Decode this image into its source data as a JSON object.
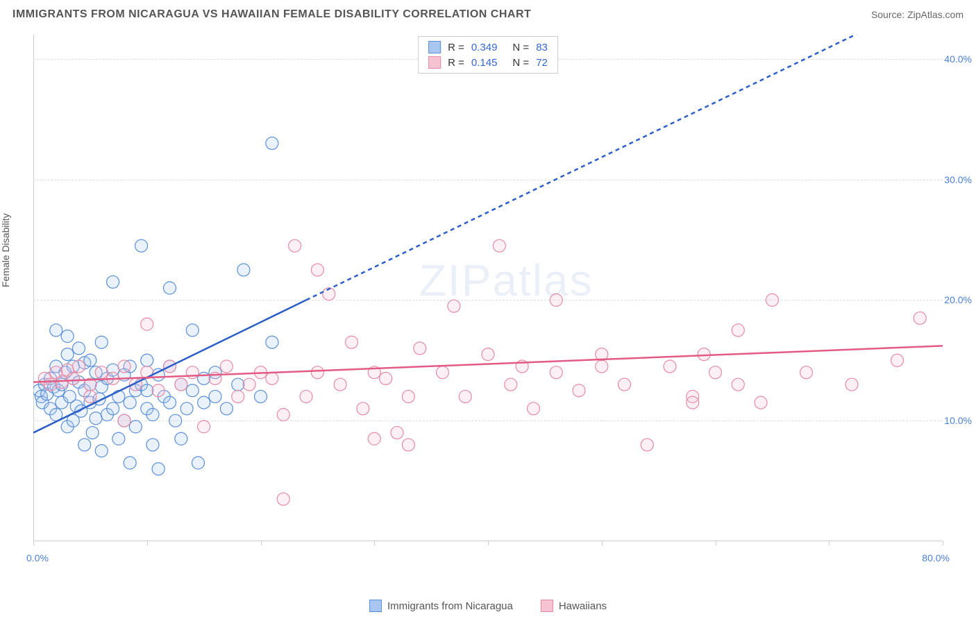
{
  "title": "IMMIGRANTS FROM NICARAGUA VS HAWAIIAN FEMALE DISABILITY CORRELATION CHART",
  "source": "Source: ZipAtlas.com",
  "ylabel": "Female Disability",
  "watermark_left": "ZIP",
  "watermark_right": "atlas",
  "chart": {
    "type": "scatter",
    "xlim": [
      0,
      80
    ],
    "ylim": [
      0,
      42
    ],
    "x_ticks": [
      0,
      10,
      20,
      30,
      40,
      50,
      60,
      70,
      80
    ],
    "x_tick_labels_shown": {
      "0": "0.0%",
      "80": "80.0%"
    },
    "y_grid": [
      10,
      20,
      30,
      40
    ],
    "y_tick_labels": {
      "10": "10.0%",
      "20": "20.0%",
      "30": "30.0%",
      "40": "40.0%"
    },
    "background_color": "#ffffff",
    "grid_color": "#dddddd",
    "axis_color": "#cccccc",
    "tick_label_color": "#4a7fd8",
    "marker_radius": 9,
    "marker_stroke_width": 1.2,
    "marker_fill_opacity": 0.25,
    "series": [
      {
        "name": "Immigrants from Nicaragua",
        "color_stroke": "#5a8fd8",
        "color_fill": "#a8c6ef",
        "points": [
          [
            0.5,
            12.5
          ],
          [
            0.7,
            12.0
          ],
          [
            0.8,
            11.5
          ],
          [
            1.0,
            13.0
          ],
          [
            1.2,
            12.2
          ],
          [
            1.5,
            13.5
          ],
          [
            1.5,
            11.0
          ],
          [
            1.8,
            12.8
          ],
          [
            2.0,
            14.5
          ],
          [
            2.0,
            17.5
          ],
          [
            2.0,
            10.5
          ],
          [
            2.2,
            12.5
          ],
          [
            2.5,
            13.0
          ],
          [
            2.5,
            11.5
          ],
          [
            2.8,
            14.0
          ],
          [
            3.0,
            15.5
          ],
          [
            3.0,
            17.0
          ],
          [
            3.0,
            9.5
          ],
          [
            3.2,
            12.0
          ],
          [
            3.5,
            13.5
          ],
          [
            3.5,
            14.5
          ],
          [
            3.5,
            10.0
          ],
          [
            3.8,
            11.2
          ],
          [
            4.0,
            13.2
          ],
          [
            4.0,
            16.0
          ],
          [
            4.2,
            10.8
          ],
          [
            4.5,
            14.8
          ],
          [
            4.5,
            12.5
          ],
          [
            4.5,
            8.0
          ],
          [
            5.0,
            13.0
          ],
          [
            5.0,
            11.5
          ],
          [
            5.0,
            15.0
          ],
          [
            5.2,
            9.0
          ],
          [
            5.5,
            10.2
          ],
          [
            5.5,
            14.0
          ],
          [
            5.8,
            11.8
          ],
          [
            6.0,
            12.8
          ],
          [
            6.0,
            16.5
          ],
          [
            6.0,
            7.5
          ],
          [
            6.5,
            13.5
          ],
          [
            6.5,
            10.5
          ],
          [
            7.0,
            14.2
          ],
          [
            7.0,
            11.0
          ],
          [
            7.0,
            21.5
          ],
          [
            7.5,
            12.0
          ],
          [
            7.5,
            8.5
          ],
          [
            8.0,
            13.8
          ],
          [
            8.0,
            10.0
          ],
          [
            8.5,
            14.5
          ],
          [
            8.5,
            11.5
          ],
          [
            8.5,
            6.5
          ],
          [
            9.0,
            12.5
          ],
          [
            9.0,
            9.5
          ],
          [
            9.5,
            13.0
          ],
          [
            9.5,
            24.5
          ],
          [
            10.0,
            15.0
          ],
          [
            10.0,
            11.0
          ],
          [
            10.0,
            12.5
          ],
          [
            10.5,
            10.5
          ],
          [
            10.5,
            8.0
          ],
          [
            11.0,
            13.8
          ],
          [
            11.0,
            6.0
          ],
          [
            11.5,
            12.0
          ],
          [
            12.0,
            14.5
          ],
          [
            12.0,
            11.5
          ],
          [
            12.0,
            21.0
          ],
          [
            12.5,
            10.0
          ],
          [
            13.0,
            13.0
          ],
          [
            13.0,
            8.5
          ],
          [
            13.5,
            11.0
          ],
          [
            14.0,
            12.5
          ],
          [
            14.0,
            17.5
          ],
          [
            14.5,
            6.5
          ],
          [
            15.0,
            13.5
          ],
          [
            15.0,
            11.5
          ],
          [
            16.0,
            12.0
          ],
          [
            16.0,
            14.0
          ],
          [
            17.0,
            11.0
          ],
          [
            18.0,
            13.0
          ],
          [
            18.5,
            22.5
          ],
          [
            20.0,
            12.0
          ],
          [
            21.0,
            33.0
          ],
          [
            21.0,
            16.5
          ]
        ],
        "regression": {
          "solid": [
            [
              0,
              9.0
            ],
            [
              24,
              20.0
            ]
          ],
          "dashed": [
            [
              24,
              20.0
            ],
            [
              80,
              45.5
            ]
          ],
          "color": "#2b5fc7",
          "width": 2.5,
          "dash": "6,5"
        }
      },
      {
        "name": "Hawaiians",
        "color_stroke": "#e68aa5",
        "color_fill": "#f6c3d2",
        "points": [
          [
            1.0,
            13.5
          ],
          [
            1.5,
            13.0
          ],
          [
            2.0,
            14.0
          ],
          [
            2.5,
            13.2
          ],
          [
            3.0,
            14.2
          ],
          [
            3.5,
            13.5
          ],
          [
            4.0,
            14.5
          ],
          [
            5.0,
            13.0
          ],
          [
            5.0,
            12.0
          ],
          [
            6.0,
            14.0
          ],
          [
            7.0,
            13.5
          ],
          [
            8.0,
            14.5
          ],
          [
            8.0,
            10.0
          ],
          [
            9.0,
            13.0
          ],
          [
            10.0,
            14.0
          ],
          [
            10.0,
            18.0
          ],
          [
            11.0,
            12.5
          ],
          [
            12.0,
            14.5
          ],
          [
            13.0,
            13.0
          ],
          [
            14.0,
            14.0
          ],
          [
            15.0,
            9.5
          ],
          [
            16.0,
            13.5
          ],
          [
            17.0,
            14.5
          ],
          [
            18.0,
            12.0
          ],
          [
            19.0,
            13.0
          ],
          [
            20.0,
            14.0
          ],
          [
            21.0,
            13.5
          ],
          [
            22.0,
            10.5
          ],
          [
            22.0,
            3.5
          ],
          [
            23.0,
            24.5
          ],
          [
            24.0,
            12.0
          ],
          [
            25.0,
            14.0
          ],
          [
            25.0,
            22.5
          ],
          [
            26.0,
            20.5
          ],
          [
            27.0,
            13.0
          ],
          [
            28.0,
            16.5
          ],
          [
            29.0,
            11.0
          ],
          [
            30.0,
            14.0
          ],
          [
            30.0,
            8.5
          ],
          [
            31.0,
            13.5
          ],
          [
            32.0,
            9.0
          ],
          [
            33.0,
            12.0
          ],
          [
            33.0,
            8.0
          ],
          [
            34.0,
            16.0
          ],
          [
            36.0,
            14.0
          ],
          [
            37.0,
            19.5
          ],
          [
            38.0,
            12.0
          ],
          [
            40.0,
            15.5
          ],
          [
            41.0,
            24.5
          ],
          [
            42.0,
            13.0
          ],
          [
            43.0,
            14.5
          ],
          [
            44.0,
            11.0
          ],
          [
            46.0,
            14.0
          ],
          [
            46.0,
            20.0
          ],
          [
            48.0,
            12.5
          ],
          [
            50.0,
            14.5
          ],
          [
            50.0,
            15.5
          ],
          [
            52.0,
            13.0
          ],
          [
            54.0,
            8.0
          ],
          [
            56.0,
            14.5
          ],
          [
            58.0,
            12.0
          ],
          [
            58.0,
            11.5
          ],
          [
            59.0,
            15.5
          ],
          [
            60.0,
            14.0
          ],
          [
            62.0,
            13.0
          ],
          [
            62.0,
            17.5
          ],
          [
            64.0,
            11.5
          ],
          [
            65.0,
            20.0
          ],
          [
            68.0,
            14.0
          ],
          [
            72.0,
            13.0
          ],
          [
            76.0,
            15.0
          ],
          [
            78.0,
            18.5
          ]
        ],
        "regression": {
          "solid": [
            [
              0,
              13.2
            ],
            [
              80,
              16.2
            ]
          ],
          "color": "#e35b84",
          "width": 2.5
        }
      }
    ]
  },
  "legend_top": [
    {
      "swatch_fill": "#a8c6ef",
      "swatch_stroke": "#5a8fd8",
      "r_label": "R =",
      "r_value": "0.349",
      "n_label": "N =",
      "n_value": "83"
    },
    {
      "swatch_fill": "#f6c3d2",
      "swatch_stroke": "#e68aa5",
      "r_label": "R =",
      "r_value": "0.145",
      "n_label": "N =",
      "n_value": "72"
    }
  ],
  "legend_bottom": [
    {
      "swatch_fill": "#a8c6ef",
      "swatch_stroke": "#5a8fd8",
      "label": "Immigrants from Nicaragua"
    },
    {
      "swatch_fill": "#f6c3d2",
      "swatch_stroke": "#e68aa5",
      "label": "Hawaiians"
    }
  ]
}
